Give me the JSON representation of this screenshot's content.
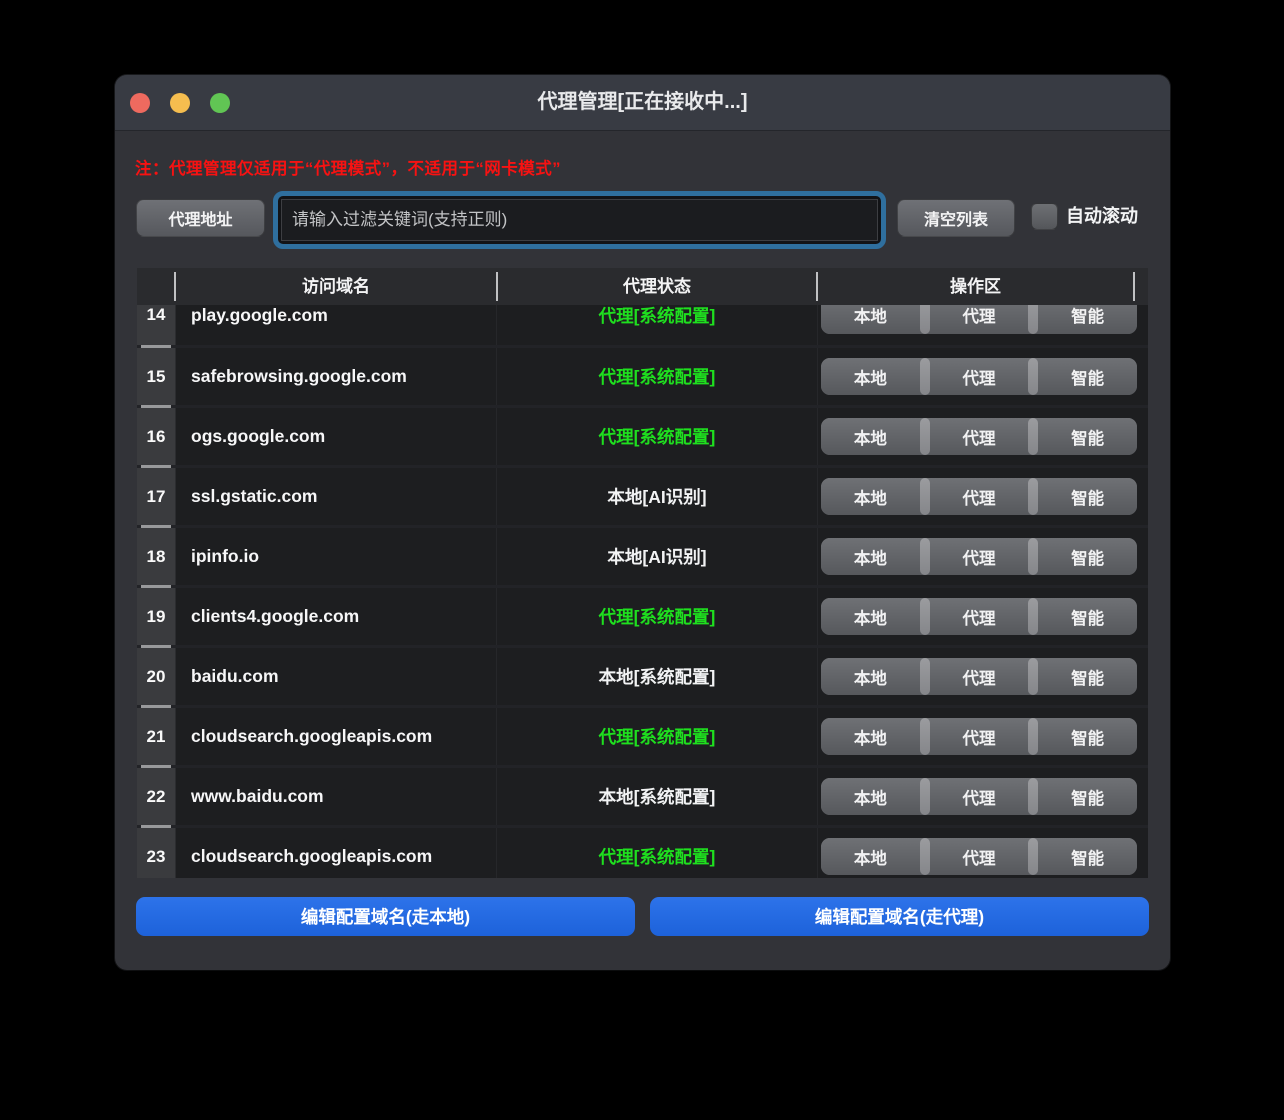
{
  "window": {
    "title": "代理管理[正在接收中...]"
  },
  "note": "注：代理管理仅适用于“代理模式”，不适用于“网卡模式”",
  "toolbar": {
    "proxy_address_label": "代理地址",
    "filter_placeholder": "请输入过滤关键词(支持正则)",
    "clear_list_label": "清空列表",
    "auto_scroll_label": "自动滚动",
    "auto_scroll_checked": false
  },
  "table": {
    "headers": {
      "domain": "访问域名",
      "status": "代理状态",
      "ops": "操作区"
    },
    "action_labels": [
      "本地",
      "代理",
      "智能"
    ],
    "action_names": [
      "local",
      "proxy",
      "smart"
    ],
    "rows": [
      {
        "index": "14",
        "domain": "play.google.com",
        "status": "代理[系统配置]",
        "green": true
      },
      {
        "index": "15",
        "domain": "safebrowsing.google.com",
        "status": "代理[系统配置]",
        "green": true
      },
      {
        "index": "16",
        "domain": "ogs.google.com",
        "status": "代理[系统配置]",
        "green": true
      },
      {
        "index": "17",
        "domain": "ssl.gstatic.com",
        "status": "本地[AI识别]",
        "green": false
      },
      {
        "index": "18",
        "domain": "ipinfo.io",
        "status": "本地[AI识别]",
        "green": false
      },
      {
        "index": "19",
        "domain": "clients4.google.com",
        "status": "代理[系统配置]",
        "green": true
      },
      {
        "index": "20",
        "domain": "baidu.com",
        "status": "本地[系统配置]",
        "green": false
      },
      {
        "index": "21",
        "domain": "cloudsearch.googleapis.com",
        "status": "代理[系统配置]",
        "green": true
      },
      {
        "index": "22",
        "domain": "www.baidu.com",
        "status": "本地[系统配置]",
        "green": false
      },
      {
        "index": "23",
        "domain": "cloudsearch.googleapis.com",
        "status": "代理[系统配置]",
        "green": true
      }
    ]
  },
  "footer": {
    "edit_local_label": "编辑配置域名(走本地)",
    "edit_proxy_label": "编辑配置域名(走代理)"
  },
  "colors": {
    "status_green": "#1fdf1f",
    "note_red": "#f81212",
    "accent_blue": "#2267e2",
    "focus_ring_blue": "#2f6f9e",
    "traffic_red": "#ee6a5f",
    "traffic_yellow": "#f5bd4f",
    "traffic_green": "#61c554"
  }
}
